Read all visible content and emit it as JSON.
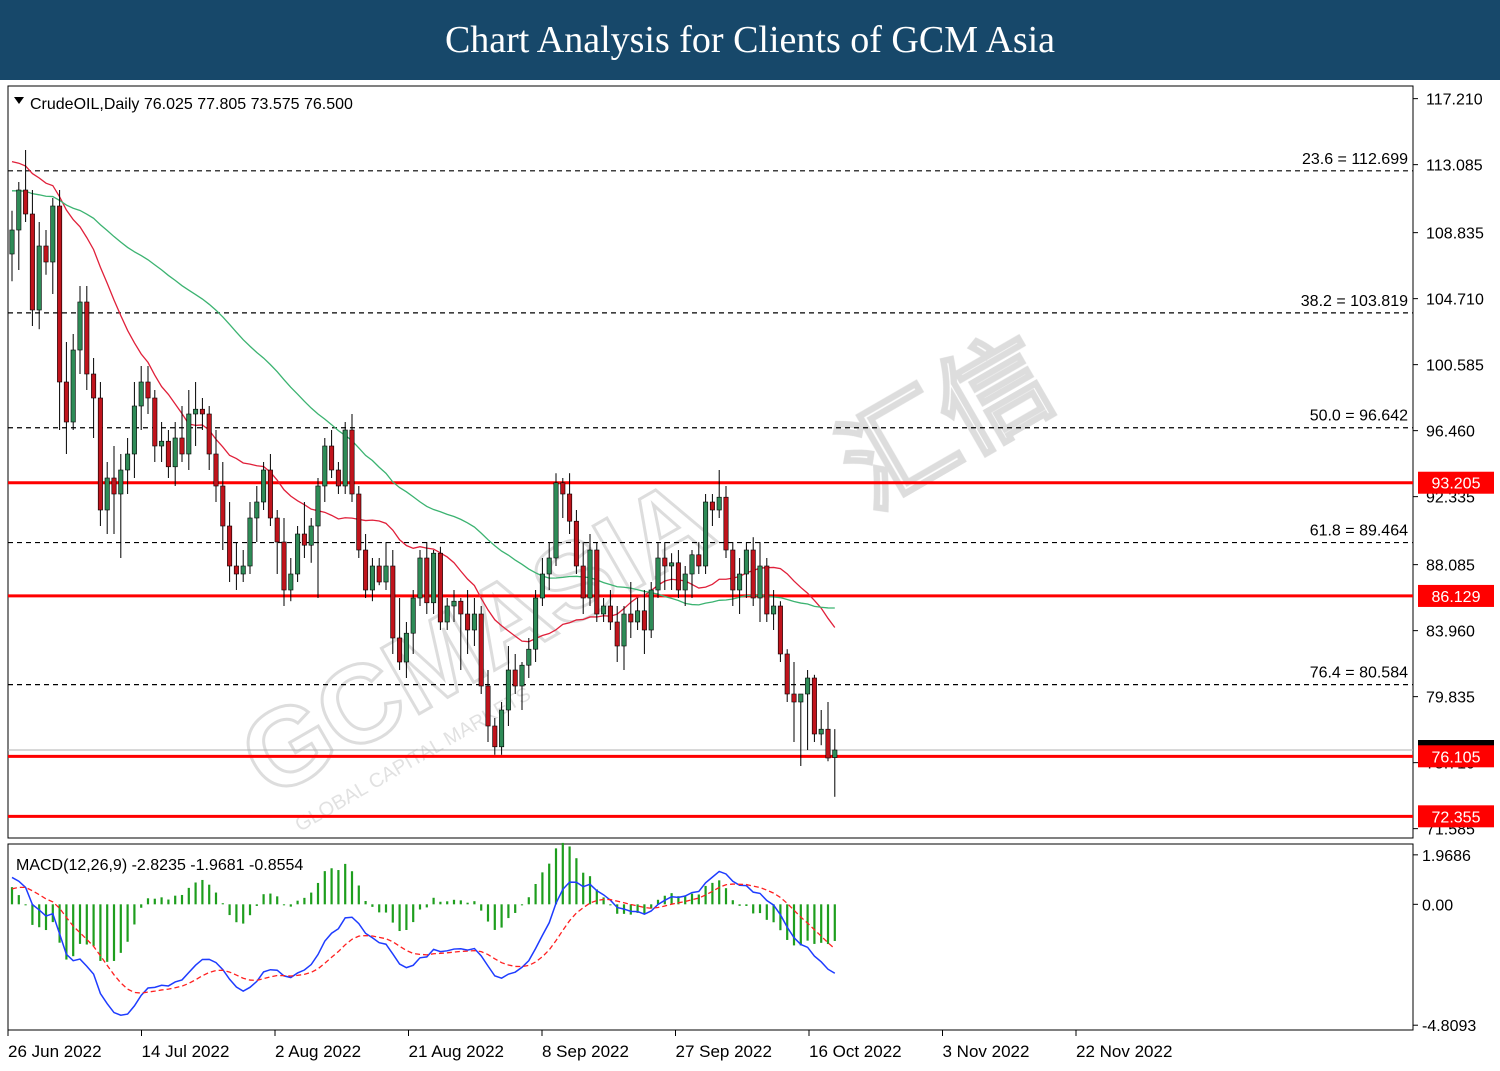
{
  "header": {
    "title": "Chart Analysis for Clients of GCM Asia"
  },
  "colors": {
    "header_bg": "#17486a",
    "bull": "#2e8b57",
    "bear": "#c0141c",
    "sma_fast": "#e0203a",
    "sma_slow": "#3cb371",
    "level": "#ff0000",
    "macd_line": "#1e3cff",
    "signal_line": "#ff2020",
    "histogram": "#1e9e1e"
  },
  "chart_data": {
    "type": "candlestick",
    "symbol_line": "CrudeOIL,Daily  76.025 77.805 73.575 76.500",
    "y_ticks": [
      "117.210",
      "113.085",
      "108.835",
      "104.710",
      "100.585",
      "96.460",
      "92.335",
      "88.085",
      "83.960",
      "79.835",
      "75.710",
      "71.585"
    ],
    "ylim": [
      71.0,
      118.0
    ],
    "x_labels": [
      "26 Jun 2022",
      "14 Jul 2022",
      "2 Aug 2022",
      "21 Aug 2022",
      "8 Sep 2022",
      "27 Sep 2022",
      "16 Oct 2022",
      "3 Nov 2022",
      "22 Nov 2022"
    ],
    "fib_levels": [
      {
        "label": "23.6 = 112.699",
        "value": 112.699
      },
      {
        "label": "38.2 = 103.819",
        "value": 103.819
      },
      {
        "label": "50.0 = 96.642",
        "value": 96.642
      },
      {
        "label": "61.8 = 89.464",
        "value": 89.464
      },
      {
        "label": "76.4 = 80.584",
        "value": 80.584
      }
    ],
    "sr_levels": [
      {
        "label": "93.205",
        "value": 93.205
      },
      {
        "label": "86.129",
        "value": 86.129
      },
      {
        "label": "76.105",
        "value": 76.105
      },
      {
        "label": "72.355",
        "value": 72.355
      }
    ],
    "current_price": 76.5,
    "candles": [
      [
        107.5,
        110.2,
        105.8,
        109.0
      ],
      [
        109.0,
        112.0,
        106.5,
        111.5
      ],
      [
        111.5,
        114.0,
        109.5,
        110.0
      ],
      [
        110.0,
        111.5,
        103.0,
        104.0
      ],
      [
        104.0,
        109.5,
        102.8,
        108.0
      ],
      [
        108.0,
        109.0,
        106.2,
        107.0
      ],
      [
        107.0,
        111.0,
        105.0,
        110.5
      ],
      [
        110.5,
        111.5,
        96.5,
        99.5
      ],
      [
        99.5,
        102.0,
        95.0,
        97.0
      ],
      [
        97.0,
        102.5,
        96.5,
        101.5
      ],
      [
        101.5,
        105.5,
        100.0,
        104.5
      ],
      [
        104.5,
        105.5,
        99.0,
        100.0
      ],
      [
        100.0,
        101.0,
        96.0,
        98.5
      ],
      [
        98.5,
        99.5,
        90.5,
        91.5
      ],
      [
        91.5,
        94.5,
        90.0,
        93.5
      ],
      [
        93.5,
        95.5,
        90.0,
        92.5
      ],
      [
        92.5,
        95.0,
        88.5,
        94.0
      ],
      [
        94.0,
        96.0,
        92.5,
        95.0
      ],
      [
        95.0,
        99.5,
        93.5,
        98.0
      ],
      [
        98.0,
        100.5,
        96.5,
        99.5
      ],
      [
        99.5,
        100.5,
        97.5,
        98.5
      ],
      [
        98.5,
        99.0,
        94.5,
        95.5
      ],
      [
        95.5,
        97.0,
        94.5,
        95.8
      ],
      [
        95.8,
        96.5,
        93.5,
        94.2
      ],
      [
        94.2,
        97.0,
        93.0,
        96.0
      ],
      [
        96.0,
        98.0,
        94.5,
        95.0
      ],
      [
        95.0,
        99.0,
        94.0,
        97.5
      ],
      [
        97.5,
        99.5,
        95.5,
        97.8
      ],
      [
        97.8,
        98.5,
        96.5,
        97.5
      ],
      [
        97.5,
        98.0,
        94.0,
        95.0
      ],
      [
        95.0,
        96.5,
        92.0,
        93.0
      ],
      [
        93.0,
        94.5,
        89.0,
        90.5
      ],
      [
        90.5,
        92.0,
        87.0,
        88.0
      ],
      [
        88.0,
        89.5,
        86.5,
        87.5
      ],
      [
        87.5,
        89.0,
        87.0,
        88.0
      ],
      [
        88.0,
        92.0,
        87.5,
        91.0
      ],
      [
        91.0,
        93.0,
        89.5,
        92.0
      ],
      [
        92.0,
        94.5,
        91.5,
        94.0
      ],
      [
        94.0,
        95.0,
        90.5,
        91.0
      ],
      [
        91.0,
        91.5,
        87.5,
        89.5
      ],
      [
        89.5,
        91.0,
        85.5,
        86.5
      ],
      [
        86.5,
        88.5,
        85.8,
        87.5
      ],
      [
        87.5,
        90.5,
        87.0,
        90.0
      ],
      [
        90.0,
        92.0,
        88.5,
        89.3
      ],
      [
        89.3,
        91.0,
        88.2,
        90.5
      ],
      [
        90.5,
        93.5,
        86.0,
        93.0
      ],
      [
        93.0,
        96.0,
        92.0,
        95.5
      ],
      [
        95.5,
        96.5,
        93.5,
        94.0
      ],
      [
        94.0,
        94.5,
        92.5,
        93.0
      ],
      [
        93.0,
        97.0,
        92.5,
        96.5
      ],
      [
        96.5,
        97.5,
        92.0,
        92.5
      ],
      [
        92.5,
        93.0,
        88.5,
        89.0
      ],
      [
        89.0,
        90.0,
        86.0,
        86.5
      ],
      [
        86.5,
        88.5,
        85.8,
        88.0
      ],
      [
        88.0,
        88.5,
        86.8,
        87.0
      ],
      [
        87.0,
        89.5,
        86.5,
        88.0
      ],
      [
        88.0,
        89.0,
        82.5,
        83.5
      ],
      [
        83.5,
        86.0,
        81.5,
        82.0
      ],
      [
        82.0,
        84.5,
        81.0,
        83.8
      ],
      [
        83.8,
        86.5,
        82.5,
        86.0
      ],
      [
        86.0,
        89.0,
        85.5,
        88.5
      ],
      [
        88.5,
        89.5,
        85.0,
        85.7
      ],
      [
        85.7,
        89.0,
        85.0,
        88.8
      ],
      [
        88.8,
        89.2,
        84.0,
        84.5
      ],
      [
        84.5,
        86.0,
        84.0,
        85.5
      ],
      [
        85.5,
        86.5,
        84.5,
        85.8
      ],
      [
        85.8,
        86.0,
        81.5,
        85.0
      ],
      [
        85.0,
        86.5,
        82.5,
        84.0
      ],
      [
        84.0,
        86.0,
        83.0,
        85.0
      ],
      [
        85.0,
        85.5,
        80.0,
        80.5
      ],
      [
        80.5,
        81.5,
        77.0,
        78.0
      ],
      [
        78.0,
        78.5,
        76.2,
        76.7
      ],
      [
        76.7,
        79.5,
        76.2,
        79.0
      ],
      [
        79.0,
        83.0,
        78.0,
        81.5
      ],
      [
        81.5,
        82.5,
        80.0,
        80.5
      ],
      [
        80.5,
        82.0,
        79.0,
        81.8
      ],
      [
        81.8,
        83.5,
        81.0,
        82.8
      ],
      [
        82.8,
        86.5,
        82.0,
        86.0
      ],
      [
        86.0,
        88.5,
        85.5,
        87.5
      ],
      [
        87.5,
        89.5,
        86.5,
        88.5
      ],
      [
        88.5,
        93.8,
        88.0,
        93.2
      ],
      [
        93.2,
        93.5,
        91.0,
        92.5
      ],
      [
        92.5,
        93.8,
        90.0,
        90.8
      ],
      [
        90.8,
        91.5,
        87.5,
        88.0
      ],
      [
        88.0,
        89.5,
        85.0,
        86.0
      ],
      [
        86.0,
        90.0,
        85.5,
        89.0
      ],
      [
        89.0,
        89.5,
        84.5,
        85.0
      ],
      [
        85.0,
        86.0,
        84.5,
        85.5
      ],
      [
        85.5,
        86.5,
        84.0,
        84.5
      ],
      [
        84.5,
        85.5,
        82.0,
        83.0
      ],
      [
        83.0,
        85.5,
        81.5,
        85.0
      ],
      [
        85.0,
        87.0,
        83.5,
        84.5
      ],
      [
        84.5,
        86.0,
        84.0,
        85.2
      ],
      [
        85.2,
        86.5,
        82.5,
        84.0
      ],
      [
        84.0,
        87.0,
        83.5,
        86.5
      ],
      [
        86.5,
        89.5,
        86.0,
        88.5
      ],
      [
        88.5,
        89.5,
        86.5,
        88.0
      ],
      [
        88.0,
        88.8,
        86.5,
        88.2
      ],
      [
        88.2,
        89.0,
        86.0,
        86.5
      ],
      [
        86.5,
        88.0,
        85.5,
        87.5
      ],
      [
        87.5,
        89.0,
        86.0,
        88.7
      ],
      [
        88.7,
        89.5,
        87.5,
        88.0
      ],
      [
        88.0,
        92.5,
        87.5,
        92.0
      ],
      [
        92.0,
        92.5,
        90.5,
        91.5
      ],
      [
        91.5,
        94.0,
        91.0,
        92.3
      ],
      [
        92.3,
        93.0,
        88.5,
        89.0
      ],
      [
        89.0,
        89.5,
        85.5,
        86.5
      ],
      [
        86.5,
        88.5,
        85.0,
        87.5
      ],
      [
        87.5,
        89.5,
        86.0,
        89.0
      ],
      [
        89.0,
        89.8,
        85.5,
        86.0
      ],
      [
        86.0,
        89.5,
        84.5,
        88.0
      ],
      [
        88.0,
        88.5,
        84.5,
        85.0
      ],
      [
        85.0,
        86.5,
        84.0,
        85.5
      ],
      [
        85.5,
        85.8,
        82.0,
        82.5
      ],
      [
        82.5,
        82.8,
        79.5,
        80.0
      ],
      [
        80.0,
        82.0,
        77.0,
        79.5
      ],
      [
        79.5,
        80.0,
        75.5,
        80.0
      ],
      [
        80.0,
        81.5,
        76.5,
        81.0
      ],
      [
        81.0,
        81.2,
        77.0,
        77.5
      ],
      [
        77.5,
        79.0,
        76.8,
        77.8
      ],
      [
        77.8,
        79.5,
        75.8,
        76.0
      ],
      [
        76.025,
        77.805,
        73.575,
        76.5
      ]
    ]
  },
  "macd": {
    "label": "MACD(12,26,9) -2.8235 -1.9681 -0.8554",
    "y_ticks": [
      "1.9686",
      "0.00",
      "-4.8093"
    ],
    "ylim": [
      -5.0,
      2.4
    ]
  },
  "watermark": {
    "text": "GCMASIA",
    "sub": "GLOBAL CAPITAL MARKETS",
    "cn": "汇信"
  }
}
